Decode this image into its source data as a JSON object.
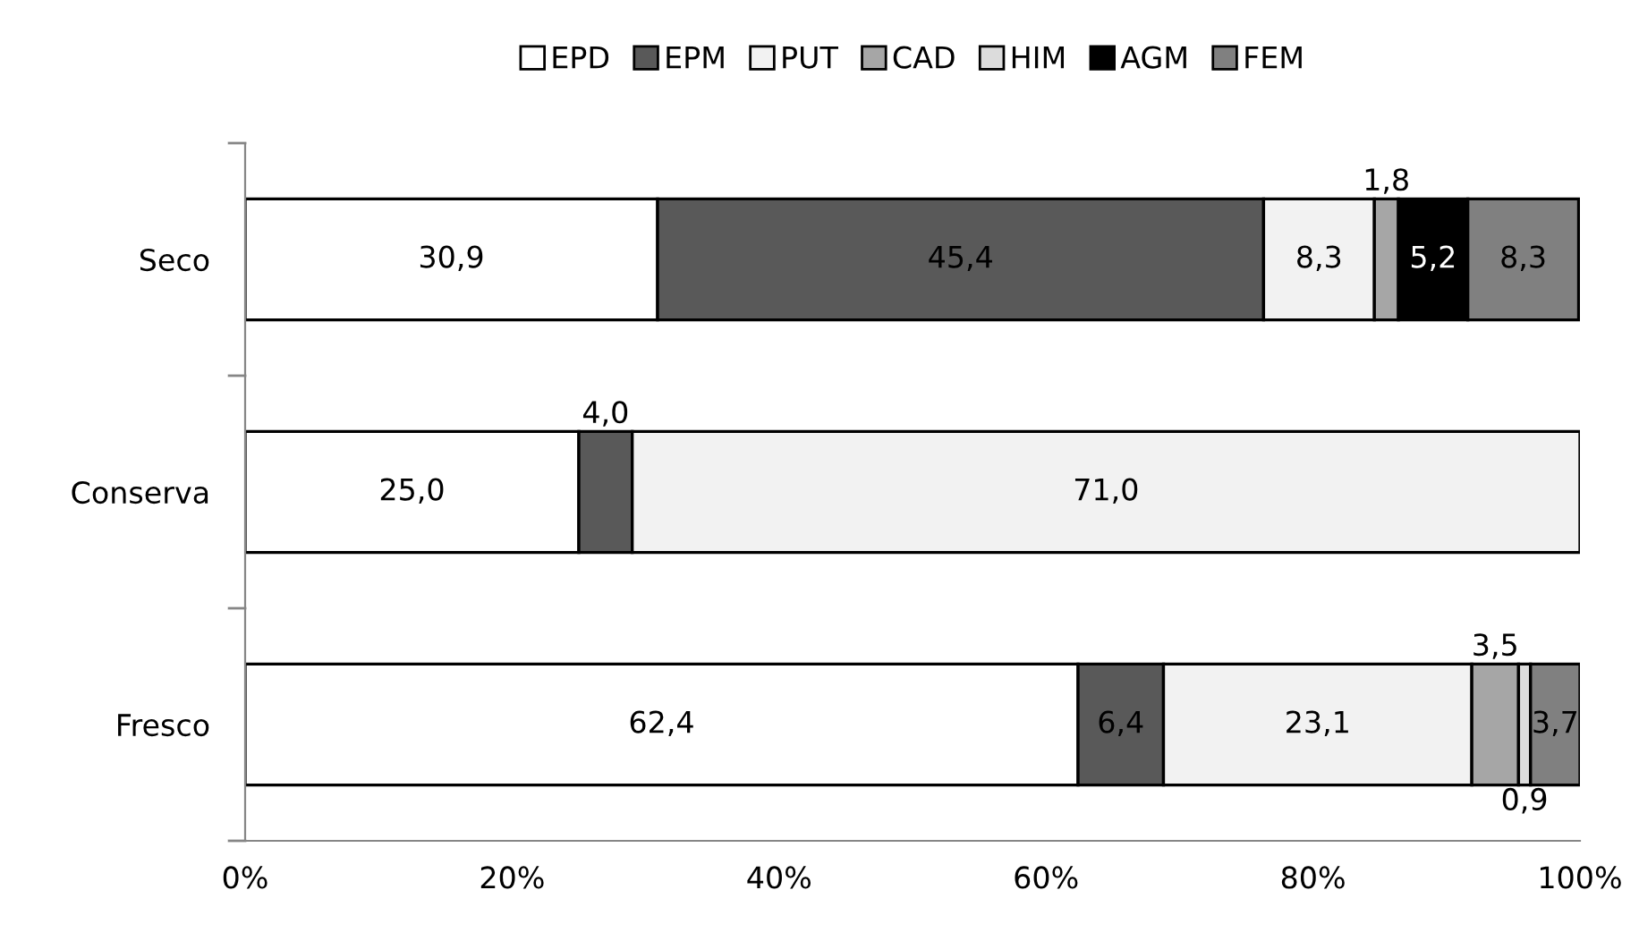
{
  "chart_data": {
    "type": "bar",
    "orientation": "horizontal",
    "stacked": true,
    "categories": [
      "Seco",
      "Conserva",
      "Fresco"
    ],
    "series": [
      {
        "name": "EPD",
        "color": "#ffffff",
        "values": [
          30.9,
          25.0,
          62.4
        ],
        "value_labels": [
          "30,9",
          "25,0",
          "62,4"
        ]
      },
      {
        "name": "EPM",
        "color": "#595959",
        "values": [
          45.4,
          4.0,
          6.4
        ],
        "value_labels": [
          "45,4",
          "4,0",
          "6,4"
        ]
      },
      {
        "name": "PUT",
        "color": "#f2f2f2",
        "values": [
          8.3,
          71.0,
          23.1
        ],
        "value_labels": [
          "8,3",
          "71,0",
          "23,1"
        ]
      },
      {
        "name": "CAD",
        "color": "#a6a6a6",
        "values": [
          1.8,
          null,
          3.5
        ],
        "value_labels": [
          "1,8",
          null,
          "3,5"
        ]
      },
      {
        "name": "HIM",
        "color": "#dcdcdc",
        "values": [
          null,
          null,
          0.9
        ],
        "value_labels": [
          null,
          null,
          "0,9"
        ]
      },
      {
        "name": "AGM",
        "color": "#000000",
        "values": [
          5.2,
          null,
          null
        ],
        "value_labels": [
          "5,2",
          null,
          null
        ]
      },
      {
        "name": "FEM",
        "color": "#808080",
        "values": [
          8.3,
          null,
          3.7
        ],
        "value_labels": [
          "8,3",
          null,
          "3,7"
        ]
      }
    ],
    "xlim": [
      0,
      100
    ],
    "xticks": [
      {
        "value": 0,
        "label": "0%"
      },
      {
        "value": 20,
        "label": "20%"
      },
      {
        "value": 40,
        "label": "40%"
      },
      {
        "value": 60,
        "label": "60%"
      },
      {
        "value": 80,
        "label": "80%"
      },
      {
        "value": 100,
        "label": "100%"
      }
    ],
    "grid": false,
    "legend": "top"
  }
}
